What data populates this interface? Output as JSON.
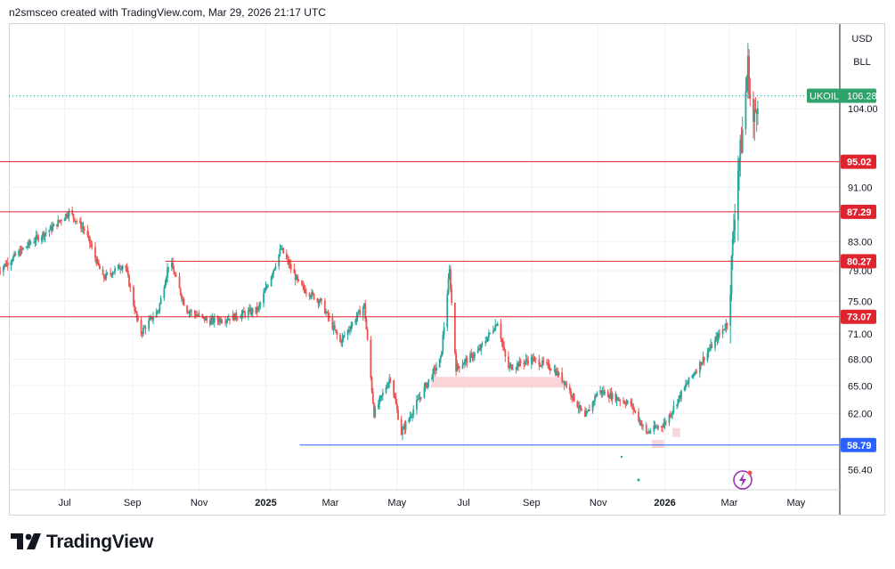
{
  "header": {
    "caption": "n2smsceo created with TradingView.com, Mar 29, 2026 21:17 UTC"
  },
  "scale_buttons": {
    "currency": "USD",
    "unit": "BLL"
  },
  "brand": {
    "text": "TradingView"
  },
  "colors": {
    "up": "#26a69a",
    "down": "#ef5350",
    "level": "#e0242f",
    "support": "#2962ff",
    "zone": "#f8c8cd",
    "symbol_tag": "#2fa36b",
    "grid": "#eef0f4"
  },
  "chart_data": {
    "type": "candlestick",
    "symbol": "UKOIL",
    "last_price": 106.28,
    "ylim": [
      54.5,
      120
    ],
    "y_scale": "log",
    "y_ticks": [
      "104.00",
      "91.00",
      "83.00",
      "79.00",
      "75.00",
      "71.00",
      "68.00",
      "65.00",
      "62.00",
      "56.40"
    ],
    "x_ticks": [
      "Jul",
      "Sep",
      "Nov",
      "2025",
      "Mar",
      "May",
      "Jul",
      "Sep",
      "Nov",
      "2026",
      "Mar",
      "May"
    ],
    "grid": true,
    "horizontal_levels": [
      {
        "price": 95.02,
        "label": "95.02",
        "color": "red",
        "start": "2024-05"
      },
      {
        "price": 87.29,
        "label": "87.29",
        "color": "red",
        "start": "2024-05"
      },
      {
        "price": 80.27,
        "label": "80.27",
        "color": "red",
        "start": "2024-10"
      },
      {
        "price": 73.07,
        "label": "73.07",
        "color": "red",
        "start": "2024-05"
      },
      {
        "price": 58.79,
        "label": "58.79",
        "color": "blue",
        "start": "2025-02"
      }
    ],
    "zones": [
      {
        "from": "2025-06",
        "to": "2025-10",
        "low": 64.8,
        "high": 66.0
      },
      {
        "from": "2025-12-20",
        "to": "2025-12-31",
        "low": 58.5,
        "high": 59.3
      },
      {
        "from": "2026-01-08",
        "to": "2026-01-15",
        "low": 59.6,
        "high": 60.5
      }
    ],
    "path_points": [
      {
        "t": "2024-05",
        "p": 79
      },
      {
        "t": "2024-06-01",
        "p": 83
      },
      {
        "t": "2024-06-20",
        "p": 85
      },
      {
        "t": "2024-07-05",
        "p": 87.3
      },
      {
        "t": "2024-07-20",
        "p": 84.5
      },
      {
        "t": "2024-08-05",
        "p": 78
      },
      {
        "t": "2024-08-25",
        "p": 80
      },
      {
        "t": "2024-09-08",
        "p": 71
      },
      {
        "t": "2024-09-25",
        "p": 74
      },
      {
        "t": "2024-10-05",
        "p": 80.5
      },
      {
        "t": "2024-10-20",
        "p": 74
      },
      {
        "t": "2024-11-10",
        "p": 72.5
      },
      {
        "t": "2024-12-01",
        "p": 73
      },
      {
        "t": "2024-12-25",
        "p": 74
      },
      {
        "t": "2025-01-10",
        "p": 80
      },
      {
        "t": "2025-01-15",
        "p": 82
      },
      {
        "t": "2025-02-01",
        "p": 77
      },
      {
        "t": "2025-02-20",
        "p": 75
      },
      {
        "t": "2025-03-10",
        "p": 70
      },
      {
        "t": "2025-04-01",
        "p": 74.5
      },
      {
        "t": "2025-04-10",
        "p": 62
      },
      {
        "t": "2025-04-25",
        "p": 66
      },
      {
        "t": "2025-05-05",
        "p": 60
      },
      {
        "t": "2025-05-25",
        "p": 64.5
      },
      {
        "t": "2025-06-10",
        "p": 68
      },
      {
        "t": "2025-06-18",
        "p": 79
      },
      {
        "t": "2025-06-24",
        "p": 67
      },
      {
        "t": "2025-07-15",
        "p": 69
      },
      {
        "t": "2025-08-01",
        "p": 72.5
      },
      {
        "t": "2025-08-10",
        "p": 67
      },
      {
        "t": "2025-09-01",
        "p": 68
      },
      {
        "t": "2025-09-20",
        "p": 67
      },
      {
        "t": "2025-10-01",
        "p": 65.5
      },
      {
        "t": "2025-10-20",
        "p": 61.5
      },
      {
        "t": "2025-11-01",
        "p": 64.5
      },
      {
        "t": "2025-12-01",
        "p": 63
      },
      {
        "t": "2025-12-15",
        "p": 60
      },
      {
        "t": "2026-01-01",
        "p": 61
      },
      {
        "t": "2026-01-20",
        "p": 65
      },
      {
        "t": "2026-02-10",
        "p": 69
      },
      {
        "t": "2026-02-28",
        "p": 72.5
      },
      {
        "t": "2026-03-03",
        "p": 80
      },
      {
        "t": "2026-03-08",
        "p": 93
      },
      {
        "t": "2026-03-12",
        "p": 98
      },
      {
        "t": "2026-03-18",
        "p": 112
      },
      {
        "t": "2026-03-22",
        "p": 100
      },
      {
        "t": "2026-03-27",
        "p": 106.28
      }
    ]
  }
}
